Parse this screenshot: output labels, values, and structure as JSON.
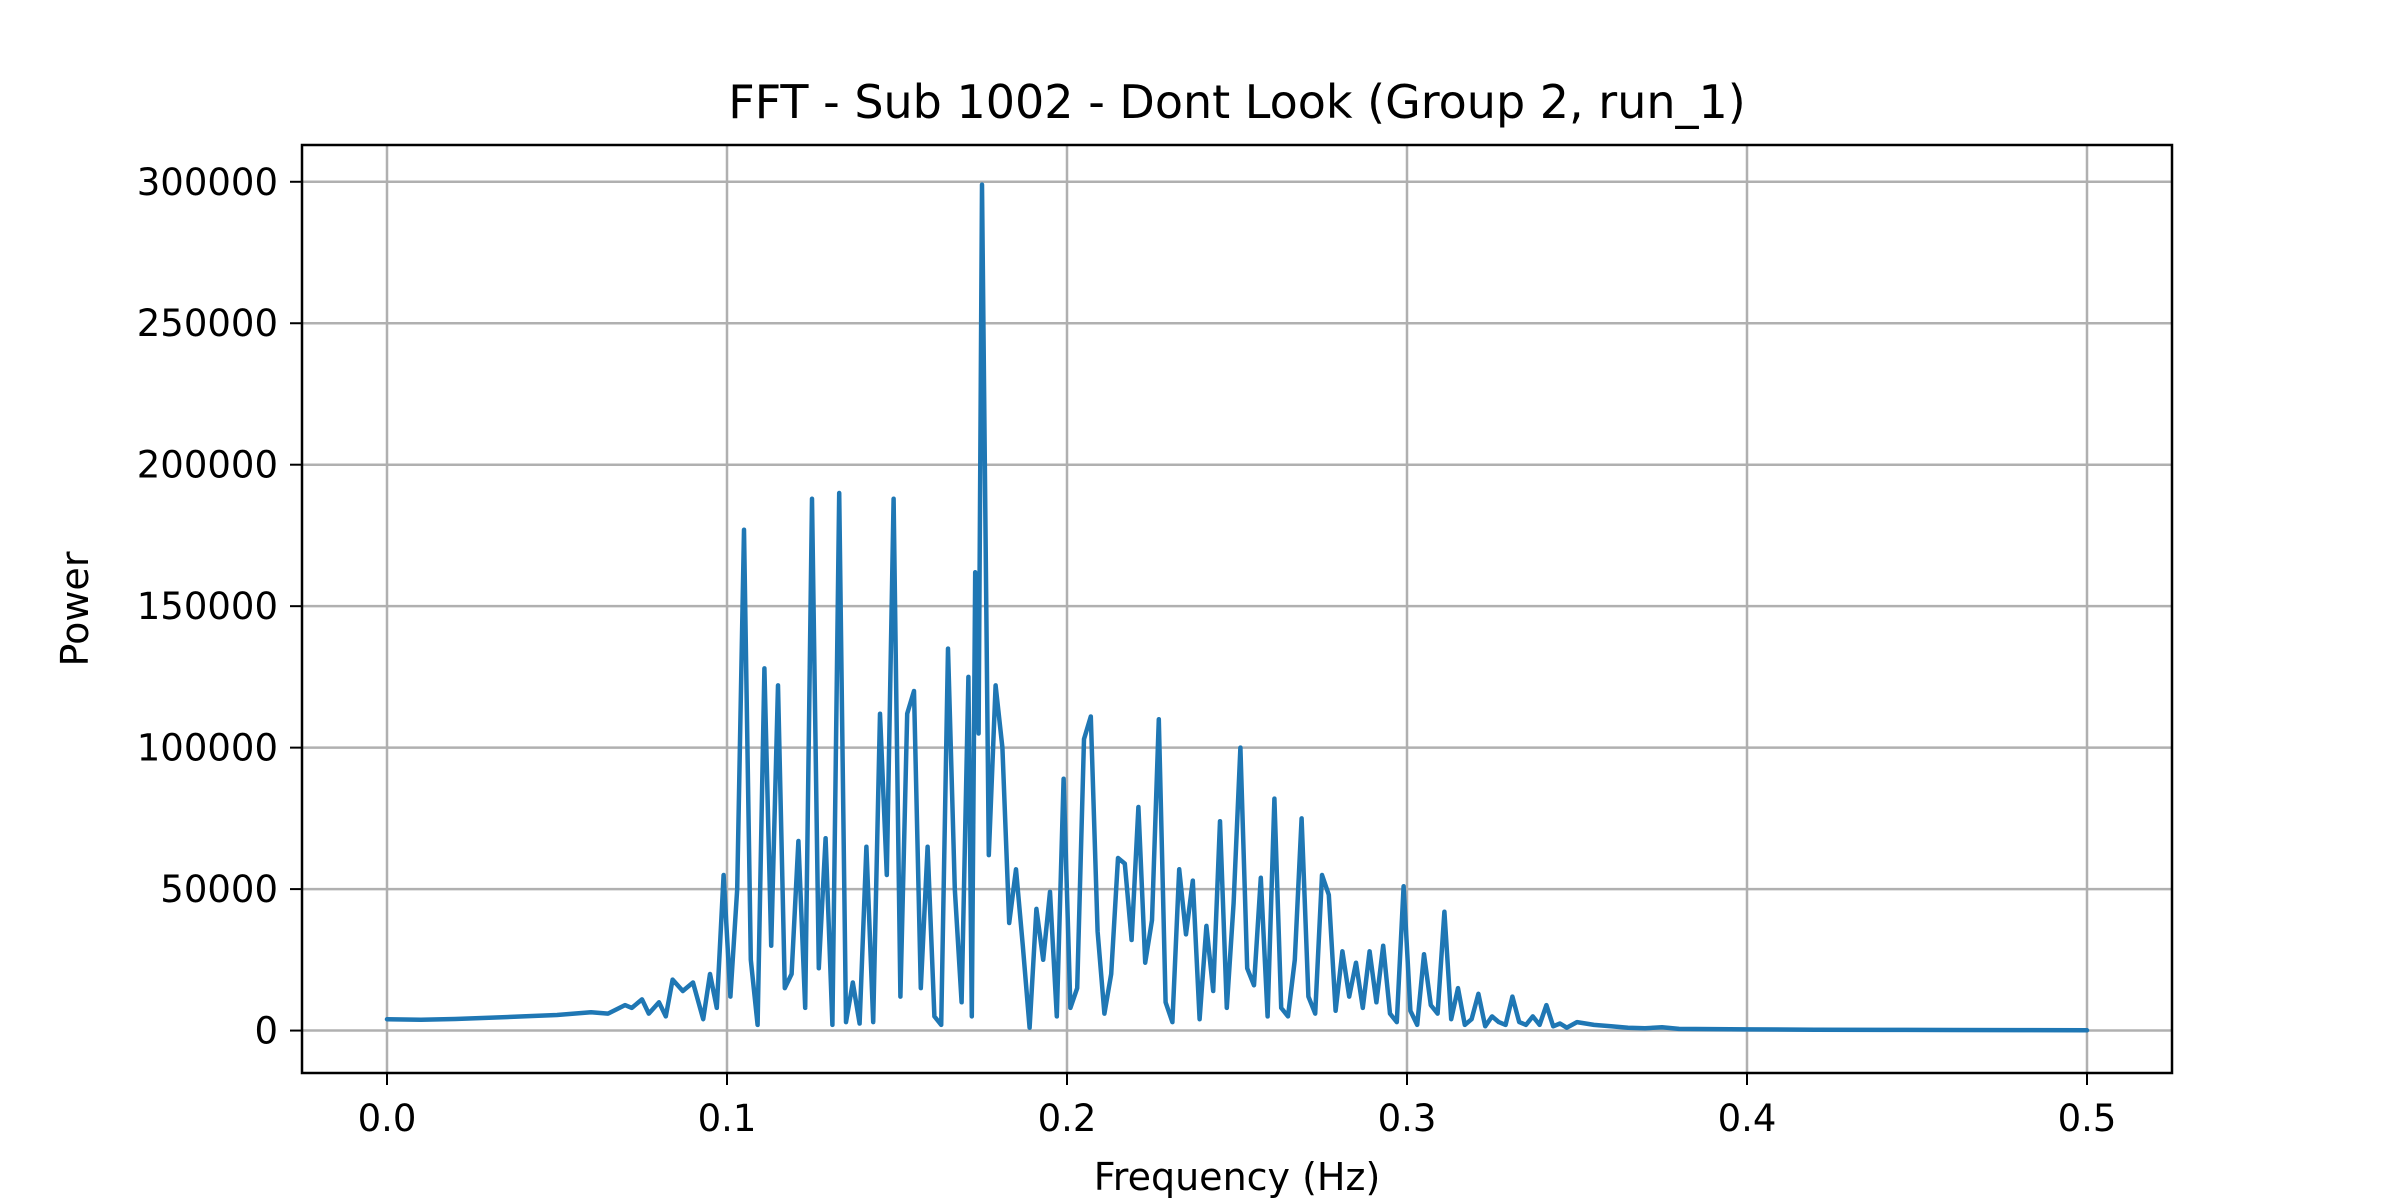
{
  "chart_data": {
    "type": "line",
    "title": "FFT - Sub 1002 - Dont Look (Group 2, run_1)",
    "xlabel": "Frequency (Hz)",
    "ylabel": "Power",
    "xlim": [
      -0.025,
      0.525
    ],
    "ylim": [
      -15000,
      313000
    ],
    "xticks": [
      0.0,
      0.1,
      0.2,
      0.3,
      0.4,
      0.5
    ],
    "xtick_labels": [
      "0.0",
      "0.1",
      "0.2",
      "0.3",
      "0.4",
      "0.5"
    ],
    "yticks": [
      0,
      50000,
      100000,
      150000,
      200000,
      250000,
      300000
    ],
    "ytick_labels": [
      "0",
      "50000",
      "100000",
      "150000",
      "200000",
      "250000",
      "300000"
    ],
    "grid": true,
    "legend": "none",
    "series": [
      {
        "color": "#1f77b4",
        "x": [
          0.0,
          0.01,
          0.02,
          0.03,
          0.04,
          0.05,
          0.06,
          0.065,
          0.07,
          0.072,
          0.075,
          0.077,
          0.08,
          0.082,
          0.084,
          0.087,
          0.09,
          0.093,
          0.095,
          0.097,
          0.099,
          0.101,
          0.103,
          0.105,
          0.107,
          0.109,
          0.111,
          0.113,
          0.115,
          0.117,
          0.119,
          0.121,
          0.123,
          0.125,
          0.127,
          0.129,
          0.131,
          0.133,
          0.135,
          0.137,
          0.139,
          0.141,
          0.143,
          0.145,
          0.147,
          0.149,
          0.151,
          0.153,
          0.155,
          0.157,
          0.159,
          0.161,
          0.163,
          0.165,
          0.167,
          0.169,
          0.171,
          0.172,
          0.173,
          0.174,
          0.175,
          0.177,
          0.179,
          0.181,
          0.183,
          0.185,
          0.187,
          0.189,
          0.191,
          0.193,
          0.195,
          0.197,
          0.199,
          0.201,
          0.203,
          0.205,
          0.207,
          0.209,
          0.211,
          0.213,
          0.215,
          0.217,
          0.219,
          0.221,
          0.223,
          0.225,
          0.227,
          0.229,
          0.231,
          0.233,
          0.235,
          0.237,
          0.239,
          0.241,
          0.243,
          0.245,
          0.247,
          0.249,
          0.251,
          0.253,
          0.255,
          0.257,
          0.259,
          0.261,
          0.263,
          0.265,
          0.267,
          0.269,
          0.271,
          0.273,
          0.275,
          0.277,
          0.279,
          0.281,
          0.283,
          0.285,
          0.287,
          0.289,
          0.291,
          0.293,
          0.295,
          0.297,
          0.299,
          0.301,
          0.303,
          0.305,
          0.307,
          0.309,
          0.311,
          0.313,
          0.315,
          0.317,
          0.319,
          0.321,
          0.323,
          0.325,
          0.327,
          0.329,
          0.331,
          0.333,
          0.335,
          0.337,
          0.339,
          0.341,
          0.343,
          0.345,
          0.347,
          0.35,
          0.355,
          0.36,
          0.365,
          0.37,
          0.375,
          0.38,
          0.39,
          0.4,
          0.42,
          0.44,
          0.46,
          0.48,
          0.5
        ],
        "y": [
          4000,
          3800,
          4100,
          4500,
          5000,
          5500,
          6500,
          6000,
          9000,
          8000,
          11000,
          6000,
          10000,
          5000,
          18000,
          14000,
          17000,
          4000,
          20000,
          8000,
          55000,
          12000,
          50000,
          177000,
          25000,
          2000,
          128000,
          30000,
          122000,
          15000,
          20000,
          67000,
          8000,
          188000,
          22000,
          68000,
          2000,
          190000,
          3000,
          17000,
          2500,
          65000,
          3000,
          112000,
          55000,
          188000,
          12000,
          112000,
          120000,
          15000,
          65000,
          5000,
          2000,
          135000,
          50000,
          10000,
          125000,
          5000,
          162000,
          105000,
          299000,
          62000,
          122000,
          100000,
          38000,
          57000,
          30000,
          1000,
          43000,
          25000,
          49000,
          5000,
          89000,
          8000,
          15000,
          103000,
          111000,
          35000,
          6000,
          20000,
          61000,
          59000,
          32000,
          79000,
          24000,
          39000,
          110000,
          10000,
          3000,
          57000,
          34000,
          53000,
          4000,
          37000,
          14000,
          74000,
          8000,
          45000,
          100000,
          22000,
          16000,
          54000,
          5000,
          82000,
          8000,
          5000,
          25000,
          75000,
          12000,
          6000,
          55000,
          48000,
          7000,
          28000,
          12000,
          24000,
          8000,
          28000,
          10000,
          30000,
          6000,
          3000,
          51000,
          7000,
          2000,
          27000,
          9000,
          6000,
          42000,
          4000,
          15000,
          2000,
          4000,
          13000,
          1500,
          5000,
          3000,
          2000,
          12000,
          3000,
          2000,
          5000,
          2000,
          9000,
          1500,
          2500,
          1000,
          3000,
          2000,
          1500,
          1000,
          800,
          1200,
          600,
          500,
          400,
          300,
          250,
          200,
          150,
          100
        ]
      }
    ]
  }
}
